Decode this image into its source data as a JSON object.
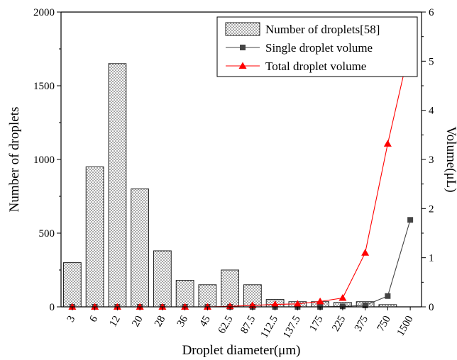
{
  "chart_data": {
    "type": "bar",
    "xlabel": "Droplet diameter(μm)",
    "ylabel": "Number of droplets",
    "y2label": "Volume(μL)",
    "categories": [
      "3",
      "6",
      "12",
      "20",
      "28",
      "36",
      "45",
      "62.5",
      "87.5",
      "112.5",
      "137.5",
      "175",
      "225",
      "375",
      "750",
      "1500"
    ],
    "ylim": [
      0,
      2000
    ],
    "y2lim": [
      0,
      6
    ],
    "yticks": [
      "0",
      "500",
      "1000",
      "1500",
      "2000"
    ],
    "y2ticks": [
      "0",
      "1",
      "2",
      "3",
      "4",
      "5",
      "6"
    ],
    "grid": false,
    "legend_position": "top-right",
    "series": [
      {
        "name": "Number of droplets[58]",
        "kind": "bar",
        "axis": "left",
        "values": [
          300,
          950,
          1650,
          800,
          380,
          180,
          150,
          250,
          150,
          50,
          35,
          35,
          30,
          35,
          15,
          0
        ]
      },
      {
        "name": "Single droplet volume",
        "kind": "line",
        "axis": "right",
        "marker": "square",
        "color": "#444444",
        "values": [
          0,
          0,
          0,
          0,
          0,
          0,
          0,
          0,
          0,
          0,
          0,
          0,
          0.01,
          0.03,
          0.22,
          1.77
        ]
      },
      {
        "name": "Total droplet volume",
        "kind": "line",
        "axis": "right",
        "marker": "triangle",
        "color": "#ff0000",
        "values": [
          0,
          0,
          0,
          0,
          0,
          0,
          0,
          0.01,
          0.03,
          0.05,
          0.06,
          0.11,
          0.18,
          1.1,
          3.32,
          5.32
        ]
      }
    ]
  }
}
